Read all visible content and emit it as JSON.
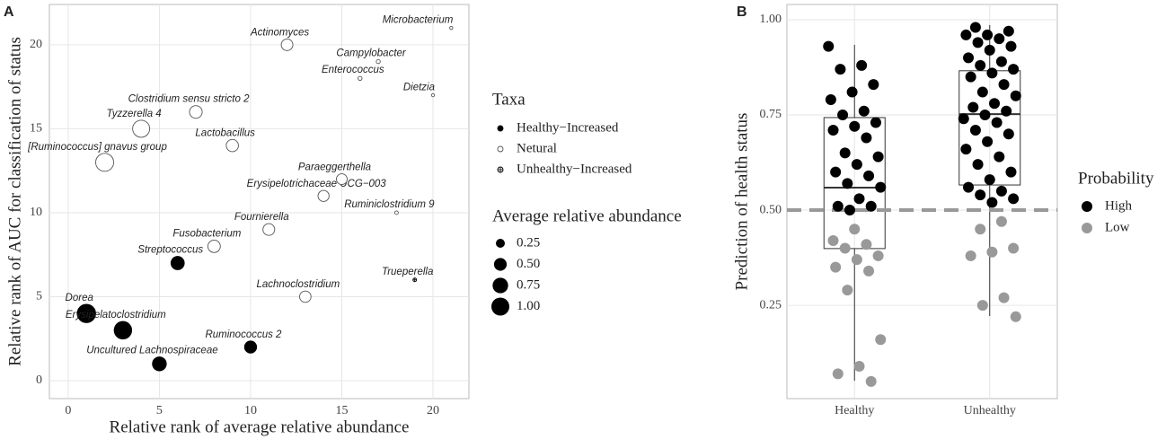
{
  "chart_data": [
    {
      "type": "scatter",
      "panel_label": "A",
      "x_label": "Relative rank of average relative abundance",
      "y_label": "Relative rank of AUC for classification of status",
      "xlim": [
        -1.03,
        21.97
      ],
      "ylim": [
        -1.07,
        22.4
      ],
      "xticks": [
        0,
        5,
        10,
        15,
        20
      ],
      "yticks": [
        0,
        5,
        10,
        15,
        20
      ],
      "grid": true,
      "legend_title": "Taxa",
      "series": [
        {
          "name": "Healthy−Increased",
          "color": "#000000",
          "marker": "filled",
          "labels": [
            "Dorea",
            "Erysipelatoclostridium",
            "Uncultured Lachnospiraceae",
            "Streptococcus",
            "Ruminococcus 2"
          ],
          "x": [
            1,
            3,
            5,
            6,
            10
          ],
          "values": [
            4,
            3,
            1,
            7,
            2
          ],
          "sizes": [
            1.05,
            0.95,
            0.6,
            0.55,
            0.45
          ]
        },
        {
          "name": "Netural",
          "color": "#555555",
          "marker": "open",
          "labels": [
            "[Ruminococcus] gnavus group",
            "Tyzzerella 4",
            "Clostridium sensu stricto 2",
            "Fusobacterium",
            "Lactobacillus",
            "Fournierella",
            "Actinomyces",
            "Lachnoclostridium",
            "Erysipelotrichaceae UCG−003",
            "Paraeggerthella",
            "Enterococcus",
            "Campylobacter",
            "Ruminiclostridium 9",
            "Dietzia",
            "Microbacterium"
          ],
          "x": [
            2,
            4,
            7,
            8,
            9,
            11,
            12,
            13,
            14,
            15,
            16,
            17,
            18,
            20,
            21
          ],
          "values": [
            13,
            15,
            16,
            8,
            14,
            9,
            20,
            5,
            11,
            12,
            18,
            19,
            10,
            17,
            21
          ],
          "sizes": [
            1.0,
            0.9,
            0.5,
            0.48,
            0.46,
            0.43,
            0.42,
            0.4,
            0.38,
            0.36,
            0.05,
            0.05,
            0.04,
            0.03,
            0.03
          ]
        },
        {
          "name": "Unhealthy−Increased",
          "color": "#000000",
          "marker": "crossed",
          "labels": [
            "Trueperella"
          ],
          "x": [
            19
          ],
          "values": [
            6
          ],
          "sizes": [
            0.04
          ]
        }
      ],
      "size_legend": {
        "title": "Average relative abundance",
        "values": [
          {
            "value": 0.25,
            "label": "0.25"
          },
          {
            "value": 0.5,
            "label": "0.50"
          },
          {
            "value": 0.75,
            "label": "0.75"
          },
          {
            "value": 1.0,
            "label": "1.00"
          }
        ]
      }
    },
    {
      "type": "box",
      "panel_label": "B",
      "y_label": "Prediction of health status",
      "categories": [
        "Healthy",
        "Unhealthy"
      ],
      "ylim": [
        0.005,
        1.04
      ],
      "yticks": [
        {
          "value": 0.25,
          "label": "0.25"
        },
        {
          "value": 0.5,
          "label": "0.50"
        },
        {
          "value": 0.75,
          "label": "0.75"
        },
        {
          "value": 1.0,
          "label": "1.00"
        }
      ],
      "grid": true,
      "reference_line": 0.5,
      "boxes": [
        {
          "whislo": 0.052,
          "q1": 0.399,
          "med": 0.559,
          "q3": 0.743,
          "whishi": 0.934
        },
        {
          "whislo": 0.222,
          "q1": 0.566,
          "med": 0.752,
          "q3": 0.866,
          "whishi": 0.986
        }
      ],
      "legend_title": "Probability",
      "series": [
        {
          "name": "High",
          "color": "#000000",
          "values": [
            [
              0.93,
              0.88,
              0.87,
              0.83,
              0.81,
              0.79,
              0.76,
              0.75,
              0.73,
              0.72,
              0.71,
              0.69,
              0.65,
              0.64,
              0.62,
              0.6,
              0.59,
              0.57,
              0.56,
              0.53,
              0.51,
              0.51,
              0.5
            ],
            [
              0.98,
              0.97,
              0.96,
              0.96,
              0.95,
              0.94,
              0.93,
              0.92,
              0.9,
              0.89,
              0.88,
              0.87,
              0.86,
              0.85,
              0.83,
              0.81,
              0.8,
              0.78,
              0.77,
              0.76,
              0.75,
              0.74,
              0.73,
              0.71,
              0.7,
              0.68,
              0.66,
              0.64,
              0.62,
              0.6,
              0.58,
              0.56,
              0.55,
              0.54,
              0.53,
              0.52
            ]
          ]
        },
        {
          "name": "Low",
          "color": "#999999",
          "values": [
            [
              0.45,
              0.42,
              0.41,
              0.4,
              0.38,
              0.37,
              0.35,
              0.34,
              0.29,
              0.16,
              0.09,
              0.07,
              0.05
            ],
            [
              0.47,
              0.45,
              0.4,
              0.39,
              0.38,
              0.27,
              0.25,
              0.22
            ]
          ]
        }
      ]
    }
  ]
}
